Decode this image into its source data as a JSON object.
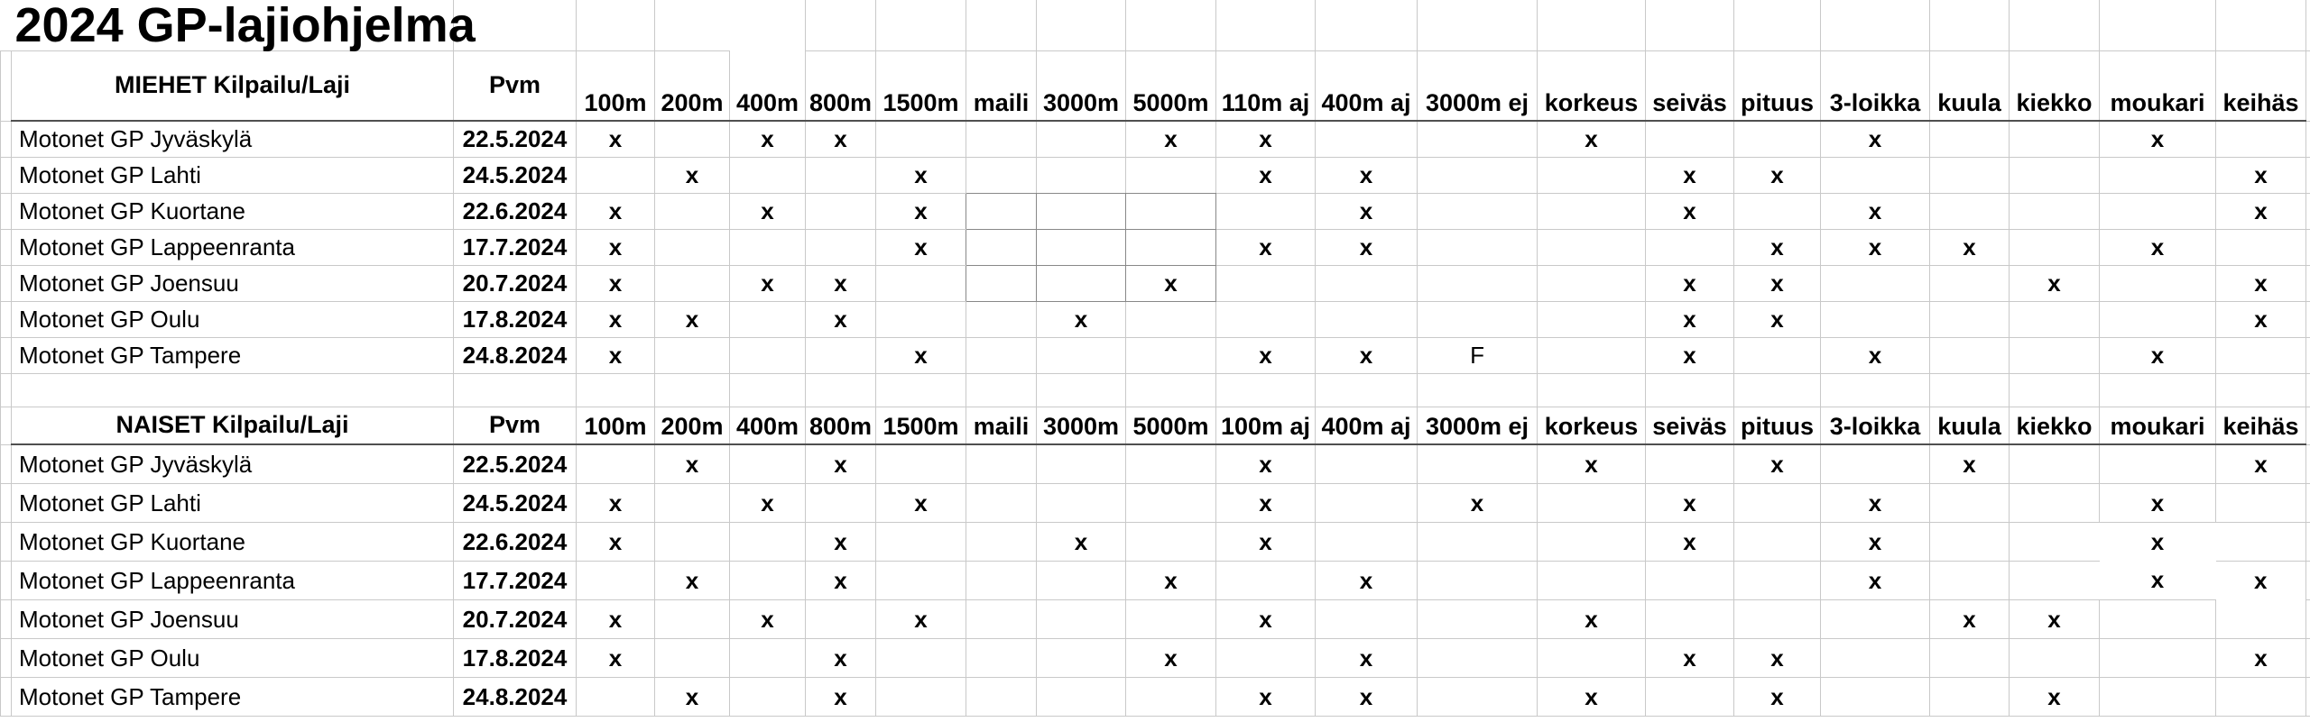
{
  "title": "2024 GP-lajiohjelma",
  "mark_glyph": "x",
  "final_glyph": "F",
  "sections": [
    {
      "label": "MIEHET Kilpailu/Laji",
      "date_label": "Pvm",
      "events": [
        "100m",
        "200m",
        "400m",
        "800m",
        "1500m",
        "maili",
        "3000m",
        "5000m",
        "110m aj",
        "400m aj",
        "3000m ej",
        "korkeus",
        "seiväs",
        "pituus",
        "3-loikka",
        "kuula",
        "kiekko",
        "moukari",
        "keihäs"
      ],
      "rows": [
        {
          "name": "Motonet GP Jyväskylä",
          "date": "22.5.2024",
          "marks": {
            "100m": "x",
            "400m": "x",
            "800m": "x",
            "5000m": "x",
            "110m aj": "x",
            "korkeus": "x",
            "3-loikka": "x",
            "moukari": "x"
          }
        },
        {
          "name": "Motonet GP Lahti",
          "date": "24.5.2024",
          "marks": {
            "200m": "x",
            "1500m": "x",
            "110m aj": "x",
            "400m aj": "x",
            "seiväs": "x",
            "pituus": "x",
            "keihäs": "x"
          }
        },
        {
          "name": "Motonet GP Kuortane",
          "date": "22.6.2024",
          "marks": {
            "100m": "x",
            "400m": "x",
            "1500m": "x",
            "400m aj": "x",
            "seiväs": "x",
            "3-loikka": "x",
            "keihäs": "x"
          }
        },
        {
          "name": "Motonet GP Lappeenranta",
          "date": "17.7.2024",
          "marks": {
            "100m": "x",
            "1500m": "x",
            "110m aj": "x",
            "400m aj": "x",
            "pituus": "x",
            "3-loikka": "x",
            "kuula": "x",
            "moukari": "x"
          }
        },
        {
          "name": "Motonet GP Joensuu",
          "date": "20.7.2024",
          "marks": {
            "100m": "x",
            "400m": "x",
            "800m": "x",
            "5000m": "x",
            "seiväs": "x",
            "pituus": "x",
            "kiekko": "x",
            "keihäs": "x"
          }
        },
        {
          "name": "Motonet GP Oulu",
          "date": "17.8.2024",
          "marks": {
            "100m": "x",
            "200m": "x",
            "800m": "x",
            "3000m": "x",
            "seiväs": "x",
            "pituus": "x",
            "keihäs": "x"
          }
        },
        {
          "name": "Motonet GP Tampere",
          "date": "24.8.2024",
          "marks": {
            "100m": "x",
            "1500m": "x",
            "110m aj": "x",
            "400m aj": "x",
            "3000m ej": "F",
            "seiväs": "x",
            "3-loikka": "x",
            "moukari": "x"
          }
        }
      ]
    },
    {
      "label": "NAISET Kilpailu/Laji",
      "date_label": "Pvm",
      "events": [
        "100m",
        "200m",
        "400m",
        "800m",
        "1500m",
        "maili",
        "3000m",
        "5000m",
        "100m aj",
        "400m aj",
        "3000m ej",
        "korkeus",
        "seiväs",
        "pituus",
        "3-loikka",
        "kuula",
        "kiekko",
        "moukari",
        "keihäs"
      ],
      "rows": [
        {
          "name": "Motonet GP Jyväskylä",
          "date": "22.5.2024",
          "marks": {
            "200m": "x",
            "800m": "x",
            "100m aj": "x",
            "korkeus": "x",
            "pituus": "x",
            "kuula": "x",
            "keihäs": "x"
          }
        },
        {
          "name": "Motonet GP Lahti",
          "date": "24.5.2024",
          "marks": {
            "100m": "x",
            "400m": "x",
            "1500m": "x",
            "100m aj": "x",
            "3000m ej": "x",
            "seiväs": "x",
            "3-loikka": "x",
            "moukari": "x"
          }
        },
        {
          "name": "Motonet GP Kuortane",
          "date": "22.6.2024",
          "marks": {
            "100m": "x",
            "800m": "x",
            "3000m": "x",
            "100m aj": "x",
            "seiväs": "x",
            "3-loikka": "x",
            "moukari": "x"
          }
        },
        {
          "name": "Motonet GP Lappeenranta",
          "date": "17.7.2024",
          "marks": {
            "200m": "x",
            "800m": "x",
            "5000m": "x",
            "400m aj": "x",
            "3-loikka": "x",
            "moukari": "x",
            "keihäs": "x"
          }
        },
        {
          "name": "Motonet GP Joensuu",
          "date": "20.7.2024",
          "marks": {
            "100m": "x",
            "400m": "x",
            "1500m": "x",
            "100m aj": "x",
            "korkeus": "x",
            "kuula": "x",
            "kiekko": "x"
          }
        },
        {
          "name": "Motonet GP Oulu",
          "date": "17.8.2024",
          "marks": {
            "100m": "x",
            "800m": "x",
            "5000m": "x",
            "400m aj": "x",
            "seiväs": "x",
            "pituus": "x",
            "keihäs": "x"
          }
        },
        {
          "name": "Motonet GP Tampere",
          "date": "24.8.2024",
          "marks": {
            "200m": "x",
            "800m": "x",
            "100m aj": "x",
            "400m aj": "x",
            "korkeus": "x",
            "pituus": "x",
            "kiekko": "x"
          }
        }
      ]
    }
  ]
}
